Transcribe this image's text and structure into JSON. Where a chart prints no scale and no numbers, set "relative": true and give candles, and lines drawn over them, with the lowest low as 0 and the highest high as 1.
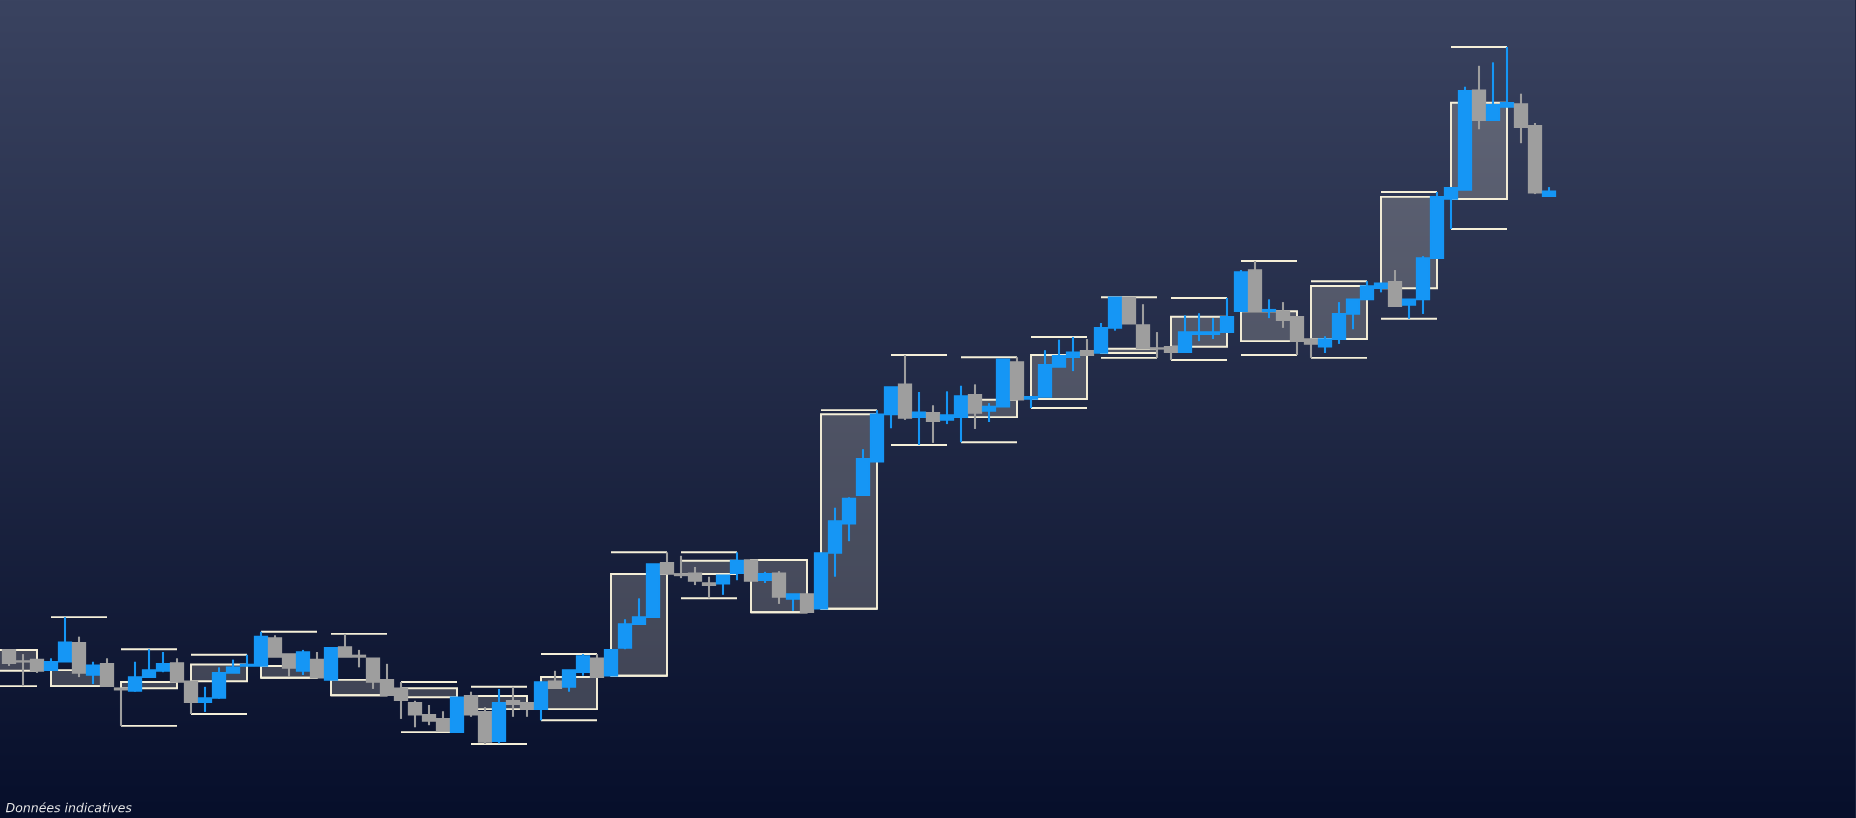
{
  "chart_data": {
    "type": "candlestick",
    "relative": true,
    "annotations": [
      "Données indicatives"
    ],
    "categories": [
      null,
      null,
      null,
      null,
      null,
      null,
      null,
      null,
      null,
      null,
      null,
      null,
      null,
      null,
      null,
      null,
      null,
      null,
      null,
      null,
      null,
      null,
      null,
      null,
      null,
      null,
      null,
      null,
      null,
      null,
      null,
      null,
      null,
      null,
      null,
      null,
      null,
      null,
      null,
      null,
      null,
      null,
      null,
      null,
      null,
      null,
      null,
      null,
      null,
      null,
      null,
      null,
      null,
      null,
      null,
      null,
      null,
      null,
      null,
      null,
      null,
      null,
      null,
      null,
      null,
      null,
      null,
      null,
      null,
      null,
      null,
      null,
      null,
      null,
      null,
      null,
      null,
      null,
      null,
      null,
      null,
      null,
      null,
      null,
      null,
      null,
      null,
      null,
      null,
      null,
      null,
      null,
      null,
      null,
      null,
      null,
      null,
      null,
      null,
      null,
      null,
      null,
      null,
      null,
      null,
      null,
      null,
      null,
      null,
      null,
      null
    ],
    "ohlc": [
      [
        0.135,
        0.135,
        0.112,
        0.116
      ],
      [
        0.119,
        0.129,
        0.083,
        0.118
      ],
      [
        0.121,
        0.121,
        0.102,
        0.105
      ],
      [
        0.106,
        0.123,
        0.106,
        0.118
      ],
      [
        0.118,
        0.182,
        0.118,
        0.146
      ],
      [
        0.145,
        0.154,
        0.096,
        0.102
      ],
      [
        0.099,
        0.118,
        0.086,
        0.113
      ],
      [
        0.115,
        0.123,
        0.083,
        0.083
      ],
      [
        0.08,
        0.08,
        0.026,
        0.078
      ],
      [
        0.076,
        0.118,
        0.075,
        0.096
      ],
      [
        0.096,
        0.136,
        0.096,
        0.106
      ],
      [
        0.105,
        0.132,
        0.103,
        0.115
      ],
      [
        0.116,
        0.123,
        0.089,
        0.089
      ],
      [
        0.09,
        0.09,
        0.043,
        0.06
      ],
      [
        0.06,
        0.082,
        0.046,
        0.066
      ],
      [
        0.066,
        0.11,
        0.065,
        0.102
      ],
      [
        0.102,
        0.121,
        0.102,
        0.11
      ],
      [
        0.112,
        0.128,
        0.112,
        0.114
      ],
      [
        0.112,
        0.161,
        0.112,
        0.154
      ],
      [
        0.152,
        0.156,
        0.125,
        0.125
      ],
      [
        0.129,
        0.129,
        0.096,
        0.109
      ],
      [
        0.105,
        0.135,
        0.099,
        0.132
      ],
      [
        0.121,
        0.132,
        0.095,
        0.095
      ],
      [
        0.092,
        0.139,
        0.092,
        0.138
      ],
      [
        0.139,
        0.158,
        0.125,
        0.125
      ],
      [
        0.127,
        0.135,
        0.11,
        0.125
      ],
      [
        0.123,
        0.123,
        0.079,
        0.089
      ],
      [
        0.092,
        0.115,
        0.07,
        0.07
      ],
      [
        0.08,
        0.089,
        0.036,
        0.063
      ],
      [
        0.059,
        0.062,
        0.024,
        0.042
      ],
      [
        0.042,
        0.056,
        0.027,
        0.033
      ],
      [
        0.036,
        0.047,
        0.019,
        0.019
      ],
      [
        0.017,
        0.067,
        0.017,
        0.067
      ],
      [
        0.069,
        0.075,
        0.039,
        0.042
      ],
      [
        0.046,
        0.053,
        0,
        0.003
      ],
      [
        0.004,
        0.079,
        0.001,
        0.059
      ],
      [
        0.062,
        0.082,
        0.039,
        0.057
      ],
      [
        0.059,
        0.059,
        0.039,
        0.05
      ],
      [
        0.05,
        0.089,
        0.034,
        0.089
      ],
      [
        0.09,
        0.105,
        0.08,
        0.08
      ],
      [
        0.082,
        0.106,
        0.075,
        0.106
      ],
      [
        0.103,
        0.129,
        0.098,
        0.126
      ],
      [
        0.123,
        0.129,
        0.096,
        0.096
      ],
      [
        0.098,
        0.135,
        0.098,
        0.135
      ],
      [
        0.138,
        0.179,
        0.136,
        0.172
      ],
      [
        0.172,
        0.209,
        0.171,
        0.182
      ],
      [
        0.182,
        0.258,
        0.182,
        0.258
      ],
      [
        0.26,
        0.275,
        0.244,
        0.244
      ],
      [
        0.244,
        0.27,
        0.238,
        0.242
      ],
      [
        0.245,
        0.254,
        0.228,
        0.234
      ],
      [
        0.231,
        0.24,
        0.209,
        0.228
      ],
      [
        0.23,
        0.242,
        0.214,
        0.242
      ],
      [
        0.245,
        0.275,
        0.235,
        0.263
      ],
      [
        0.264,
        0.264,
        0.234,
        0.234
      ],
      [
        0.235,
        0.247,
        0.231,
        0.244
      ],
      [
        0.245,
        0.248,
        0.201,
        0.211
      ],
      [
        0.208,
        0.215,
        0.191,
        0.215
      ],
      [
        0.215,
        0.215,
        0.189,
        0.189
      ],
      [
        0.194,
        0.274,
        0.194,
        0.274
      ],
      [
        0.274,
        0.339,
        0.24,
        0.32
      ],
      [
        0.316,
        0.354,
        0.291,
        0.352
      ],
      [
        0.357,
        0.423,
        0.357,
        0.409
      ],
      [
        0.405,
        0.479,
        0.405,
        0.473
      ],
      [
        0.473,
        0.512,
        0.453,
        0.512
      ],
      [
        0.516,
        0.558,
        0.465,
        0.468
      ],
      [
        0.469,
        0.505,
        0.429,
        0.476
      ],
      [
        0.475,
        0.486,
        0.432,
        0.463
      ],
      [
        0.465,
        0.506,
        0.459,
        0.472
      ],
      [
        0.469,
        0.514,
        0.433,
        0.499
      ],
      [
        0.501,
        0.516,
        0.452,
        0.475
      ],
      [
        0.478,
        0.489,
        0.462,
        0.484
      ],
      [
        0.484,
        0.552,
        0.484,
        0.552
      ],
      [
        0.548,
        0.555,
        0.494,
        0.494
      ],
      [
        0.495,
        0.498,
        0.482,
        0.498
      ],
      [
        0.498,
        0.565,
        0.498,
        0.544
      ],
      [
        0.541,
        0.58,
        0.541,
        0.557
      ],
      [
        0.555,
        0.584,
        0.535,
        0.562
      ],
      [
        0.564,
        0.581,
        0.558,
        0.558
      ],
      [
        0.561,
        0.604,
        0.561,
        0.597
      ],
      [
        0.597,
        0.641,
        0.593,
        0.641
      ],
      [
        0.64,
        0.64,
        0.603,
        0.603
      ],
      [
        0.601,
        0.631,
        0.568,
        0.568
      ],
      [
        0.568,
        0.591,
        0.554,
        0.567
      ],
      [
        0.57,
        0.57,
        0.551,
        0.562
      ],
      [
        0.562,
        0.615,
        0.561,
        0.591
      ],
      [
        0.588,
        0.618,
        0.578,
        0.591
      ],
      [
        0.588,
        0.611,
        0.581,
        0.591
      ],
      [
        0.591,
        0.64,
        0.591,
        0.613
      ],
      [
        0.621,
        0.68,
        0.621,
        0.677
      ],
      [
        0.68,
        0.693,
        0.621,
        0.621
      ],
      [
        0.621,
        0.638,
        0.611,
        0.623
      ],
      [
        0.621,
        0.634,
        0.597,
        0.608
      ],
      [
        0.613,
        0.613,
        0.558,
        0.578
      ],
      [
        0.581,
        0.581,
        0.554,
        0.574
      ],
      [
        0.57,
        0.585,
        0.561,
        0.581
      ],
      [
        0.581,
        0.634,
        0.574,
        0.617
      ],
      [
        0.617,
        0.638,
        0.595,
        0.638
      ],
      [
        0.638,
        0.664,
        0.638,
        0.657
      ],
      [
        0.654,
        0.661,
        0.648,
        0.661
      ],
      [
        0.663,
        0.68,
        0.628,
        0.628
      ],
      [
        0.63,
        0.638,
        0.61,
        0.638
      ],
      [
        0.638,
        0.7,
        0.617,
        0.697
      ],
      [
        0.697,
        0.792,
        0.697,
        0.785
      ],
      [
        0.782,
        0.798,
        0.739,
        0.798
      ],
      [
        0.795,
        0.943,
        0.795,
        0.937
      ],
      [
        0.938,
        0.973,
        0.882,
        0.895
      ],
      [
        0.895,
        0.978,
        0.895,
        0.917
      ],
      [
        0.914,
        1,
        0.914,
        0.92
      ],
      [
        0.918,
        0.933,
        0.862,
        0.885
      ],
      [
        0.887,
        0.891,
        0.789,
        0.791
      ],
      [
        0.786,
        0.799,
        0.786,
        0.793
      ]
    ],
    "colors": [
      "#9e9e9e",
      "#9e9e9e",
      "#9e9e9e",
      "#1596f5",
      "#1596f5",
      "#9e9e9e",
      "#1596f5",
      "#9e9e9e",
      "#9e9e9e",
      "#1596f5",
      "#1596f5",
      "#1596f5",
      "#9e9e9e",
      "#9e9e9e",
      "#1596f5",
      "#1596f5",
      "#1596f5",
      "#1596f5",
      "#1596f5",
      "#9e9e9e",
      "#9e9e9e",
      "#1596f5",
      "#9e9e9e",
      "#1596f5",
      "#9e9e9e",
      "#9e9e9e",
      "#9e9e9e",
      "#9e9e9e",
      "#9e9e9e",
      "#9e9e9e",
      "#9e9e9e",
      "#9e9e9e",
      "#1596f5",
      "#9e9e9e",
      "#9e9e9e",
      "#1596f5",
      "#9e9e9e",
      "#9e9e9e",
      "#1596f5",
      "#9e9e9e",
      "#1596f5",
      "#1596f5",
      "#9e9e9e",
      "#1596f5",
      "#1596f5",
      "#1596f5",
      "#1596f5",
      "#9e9e9e",
      "#9e9e9e",
      "#9e9e9e",
      "#9e9e9e",
      "#1596f5",
      "#1596f5",
      "#9e9e9e",
      "#1596f5",
      "#9e9e9e",
      "#1596f5",
      "#9e9e9e",
      "#1596f5",
      "#1596f5",
      "#1596f5",
      "#1596f5",
      "#1596f5",
      "#1596f5",
      "#9e9e9e",
      "#1596f5",
      "#9e9e9e",
      "#1596f5",
      "#1596f5",
      "#9e9e9e",
      "#1596f5",
      "#1596f5",
      "#9e9e9e",
      "#1596f5",
      "#1596f5",
      "#1596f5",
      "#1596f5",
      "#9e9e9e",
      "#1596f5",
      "#1596f5",
      "#9e9e9e",
      "#9e9e9e",
      "#9e9e9e",
      "#9e9e9e",
      "#1596f5",
      "#1596f5",
      "#1596f5",
      "#1596f5",
      "#1596f5",
      "#9e9e9e",
      "#1596f5",
      "#9e9e9e",
      "#9e9e9e",
      "#9e9e9e",
      "#1596f5",
      "#1596f5",
      "#1596f5",
      "#1596f5",
      "#1596f5",
      "#9e9e9e",
      "#1596f5",
      "#1596f5",
      "#1596f5",
      "#1596f5",
      "#1596f5",
      "#9e9e9e",
      "#1596f5",
      "#1596f5",
      "#9e9e9e",
      "#9e9e9e",
      "#1596f5"
    ]
  }
}
